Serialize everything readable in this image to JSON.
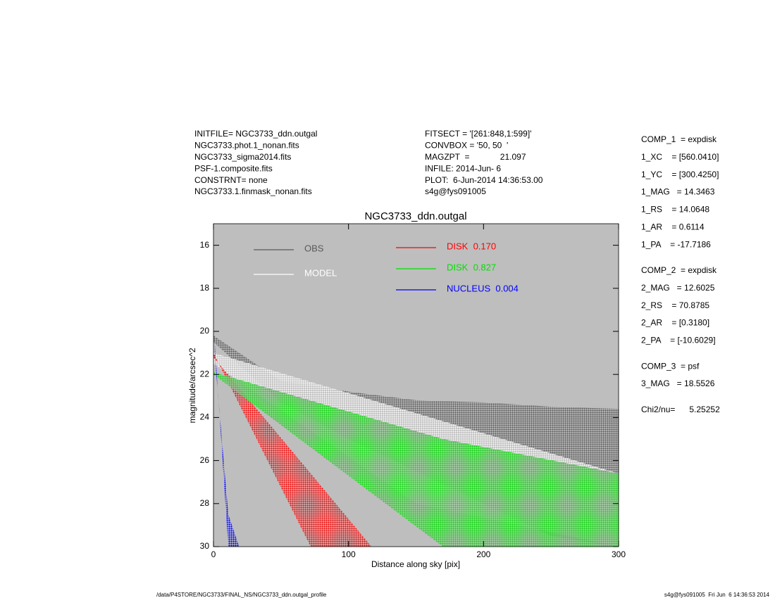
{
  "header_left": [
    "INITFILE= NGC3733_ddn.outgal",
    "NGC3733.phot.1_nonan.fits",
    "NGC3733_sigma2014.fits",
    "PSF-1.composite.fits",
    "CONSTRNT= none",
    "NGC3733.1.finmask_nonan.fits"
  ],
  "header_middle": [
    "FITSECT = '[261:848,1:599]'",
    "CONVBOX = '50, 50  '",
    "MAGZPT  =             21.097",
    "INFILE: 2014-Jun- 6",
    "PLOT:  6-Jun-2014 14:36:53.00",
    "s4g@fys091005"
  ],
  "params": [
    [
      "COMP_1  = expdisk",
      "1_XC    = [560.0410]",
      "1_YC    = [300.4250]",
      "1_MAG   = 14.3463",
      "1_RS    = 14.0648",
      "1_AR    = 0.6114",
      "1_PA    = -17.7186"
    ],
    [
      "COMP_2  = expdisk",
      "2_MAG   = 12.6025",
      "2_RS    = 70.8785",
      "2_AR    = [0.3180]",
      "2_PA    = [-10.6029]"
    ],
    [
      "COMP_3  = psf",
      "3_MAG   = 18.5526"
    ],
    [
      "Chi2/nu=      5.25252"
    ]
  ],
  "footer_left": "/data/P4STORE/NGC3733/FINAL_NS/NGC3733_ddn.outgal_profile",
  "footer_right": "s4g@fys091005  Fri Jun  6 14:36:53 2014",
  "chart_data": {
    "type": "band",
    "title": "NGC3733_ddn.outgal",
    "x_label": "Distance along sky [pix]",
    "y_label": "magnitude/arcsec^2",
    "xlim": [
      0,
      300
    ],
    "xticks": [
      0,
      100,
      200,
      300
    ],
    "ylim": [
      30,
      15
    ],
    "yticks": [
      16,
      18,
      20,
      22,
      24,
      26,
      28,
      30
    ],
    "background": "#bebebe",
    "series": [
      {
        "name": "OBS",
        "color": "#5a5a5a",
        "x": [
          0,
          50,
          100,
          150,
          200,
          250,
          300
        ],
        "values": [
          20.2,
          22.3,
          22.8,
          23.2,
          23.3,
          23.5,
          23.6
        ],
        "lower": [
          20.5,
          23.3,
          25,
          26.5,
          28,
          29.5,
          30
        ]
      },
      {
        "name": "MODEL",
        "color": "#ffffff",
        "x": [
          0,
          150,
          300
        ],
        "values": [
          21,
          23.8,
          26.6
        ],
        "lower": [
          21.5,
          28,
          30
        ]
      },
      {
        "name": "DISK  0.170",
        "color": "#ff0000",
        "x": [
          0,
          72,
          117
        ],
        "values": [
          21,
          30,
          30
        ],
        "lower": [
          21.2,
          26.6,
          30
        ]
      },
      {
        "name": "DISK  0.827",
        "color": "#00e000",
        "x": [
          0,
          170,
          300
        ],
        "values": [
          21.9,
          25,
          26.6
        ],
        "lower": [
          22,
          30,
          30
        ]
      },
      {
        "name": "NUCLEUS  0.004",
        "color": "#0000ff",
        "x": [
          1,
          11,
          19
        ],
        "values": [
          20.6,
          30,
          30
        ],
        "lower": [
          21.2,
          28.5,
          30
        ]
      }
    ]
  }
}
